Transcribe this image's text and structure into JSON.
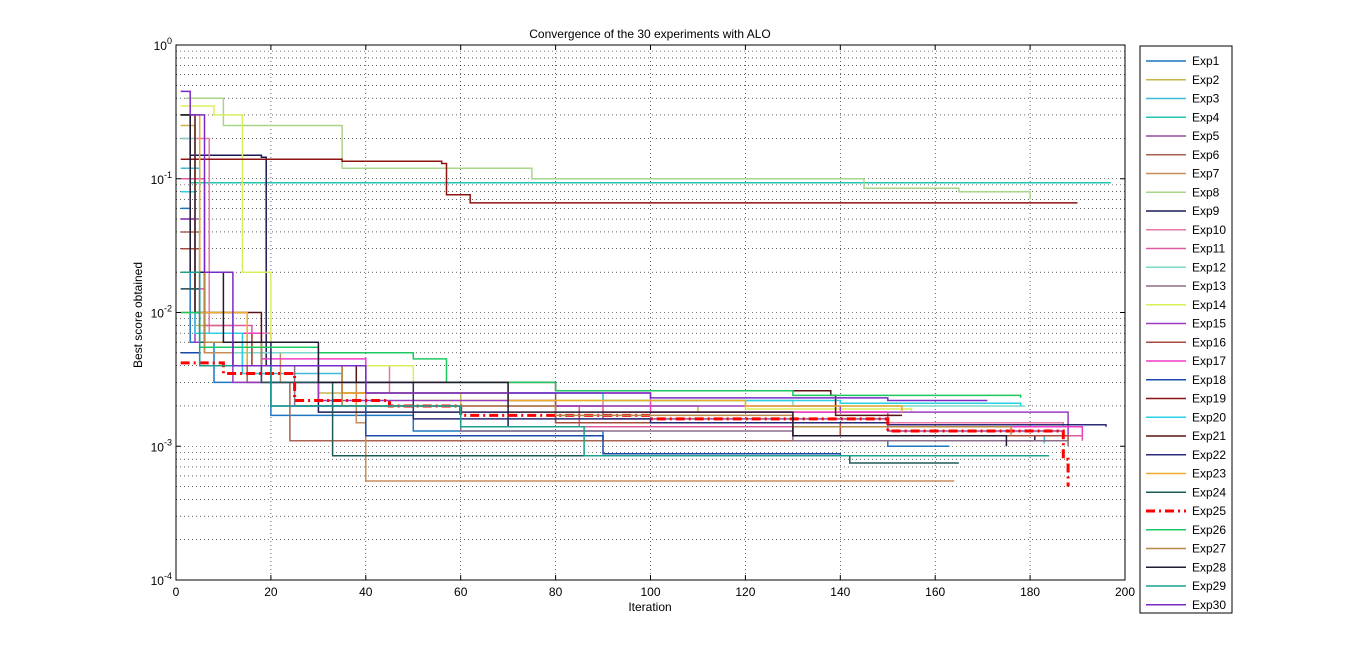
{
  "chart_data": {
    "type": "line",
    "title": "Convergence of the 30 experiments with ALO",
    "xlabel": "Iteration",
    "ylabel": "Best score obtained",
    "xlim": [
      0,
      200
    ],
    "ylim": [
      0.0001,
      1
    ],
    "yscale": "log",
    "grid": true,
    "legend_position": "outside-right",
    "x_ticks": [
      "0",
      "20",
      "40",
      "60",
      "80",
      "100",
      "120",
      "140",
      "160",
      "180",
      "200"
    ],
    "y_ticks": [
      {
        "base": "10",
        "exp": "-4"
      },
      {
        "base": "10",
        "exp": "-3"
      },
      {
        "base": "10",
        "exp": "-2"
      },
      {
        "base": "10",
        "exp": "-1"
      },
      {
        "base": "10",
        "exp": "0"
      }
    ],
    "series": [
      {
        "name": "Exp1",
        "color": "#1f77c4",
        "points": [
          [
            1,
            0.06
          ],
          [
            3,
            0.006
          ],
          [
            8,
            0.003
          ],
          [
            20,
            0.0017
          ],
          [
            50,
            0.0013
          ],
          [
            90,
            0.0011
          ],
          [
            150,
            0.001
          ],
          [
            163,
            0.001
          ]
        ]
      },
      {
        "name": "Exp2",
        "color": "#c8b44a",
        "points": [
          [
            1,
            0.25
          ],
          [
            4,
            0.008
          ],
          [
            12,
            0.004
          ],
          [
            30,
            0.0025
          ],
          [
            60,
            0.002
          ],
          [
            110,
            0.0018
          ],
          [
            150,
            0.0017
          ],
          [
            152,
            0.0017
          ]
        ]
      },
      {
        "name": "Exp3",
        "color": "#3cbad8",
        "points": [
          [
            1,
            0.12
          ],
          [
            5,
            0.006
          ],
          [
            14,
            0.0035
          ],
          [
            35,
            0.002
          ],
          [
            80,
            0.0015
          ],
          [
            140,
            0.0012
          ],
          [
            183,
            0.00105
          ]
        ]
      },
      {
        "name": "Exp4",
        "color": "#22c6b0",
        "points": [
          [
            1,
            0.3
          ],
          [
            3,
            0.0933
          ],
          [
            50,
            0.0933
          ],
          [
            120,
            0.0933
          ],
          [
            197,
            0.0933
          ]
        ]
      },
      {
        "name": "Exp5",
        "color": "#9a4c9c",
        "points": [
          [
            1,
            0.02
          ],
          [
            6,
            0.005
          ],
          [
            18,
            0.003
          ],
          [
            40,
            0.002
          ],
          [
            90,
            0.0016
          ],
          [
            150,
            0.0013
          ],
          [
            187,
            0.0012
          ]
        ]
      },
      {
        "name": "Exp6",
        "color": "#a8624e",
        "points": [
          [
            1,
            0.04
          ],
          [
            5,
            0.007
          ],
          [
            15,
            0.003
          ],
          [
            24,
            0.0011
          ],
          [
            60,
            0.0011
          ],
          [
            120,
            0.0011
          ],
          [
            175,
            0.0011
          ]
        ]
      },
      {
        "name": "Exp7",
        "color": "#c88b5a",
        "points": [
          [
            1,
            0.01
          ],
          [
            6,
            0.005
          ],
          [
            22,
            0.003
          ],
          [
            38,
            0.0015
          ],
          [
            40,
            0.00055
          ],
          [
            100,
            0.00055
          ],
          [
            164,
            0.00055
          ]
        ]
      },
      {
        "name": "Exp8",
        "color": "#a9d58b",
        "points": [
          [
            2,
            0.4
          ],
          [
            10,
            0.25
          ],
          [
            35,
            0.12
          ],
          [
            75,
            0.1
          ],
          [
            105,
            0.1
          ],
          [
            145,
            0.085
          ],
          [
            165,
            0.08
          ],
          [
            180,
            0.07
          ]
        ]
      },
      {
        "name": "Exp9",
        "color": "#1a1a55",
        "points": [
          [
            1,
            0.3
          ],
          [
            3,
            0.15
          ],
          [
            18,
            0.145
          ],
          [
            19,
            0.004
          ],
          [
            30,
            0.0018
          ],
          [
            70,
            0.0014
          ],
          [
            130,
            0.0012
          ],
          [
            181,
            0.0011
          ]
        ]
      },
      {
        "name": "Exp10",
        "color": "#e87aa8",
        "points": [
          [
            1,
            0.2
          ],
          [
            7,
            0.007
          ],
          [
            20,
            0.004
          ],
          [
            45,
            0.0025
          ],
          [
            90,
            0.0018
          ],
          [
            150,
            0.0015
          ],
          [
            187,
            0.0014
          ]
        ]
      },
      {
        "name": "Exp11",
        "color": "#dd5aa0",
        "points": [
          [
            1,
            0.1
          ],
          [
            6,
            0.008
          ],
          [
            16,
            0.004
          ],
          [
            40,
            0.002
          ],
          [
            85,
            0.0014
          ],
          [
            140,
            0.0012
          ],
          [
            191,
            0.0011
          ]
        ]
      },
      {
        "name": "Exp12",
        "color": "#7cd8c8",
        "points": [
          [
            1,
            0.2
          ],
          [
            4,
            0.01
          ],
          [
            12,
            0.005
          ],
          [
            30,
            0.003
          ],
          [
            70,
            0.0022
          ],
          [
            130,
            0.002
          ],
          [
            179,
            0.002
          ]
        ]
      },
      {
        "name": "Exp13",
        "color": "#8c6e8a",
        "points": [
          [
            1,
            0.05
          ],
          [
            5,
            0.006
          ],
          [
            12,
            0.004
          ],
          [
            25,
            0.002
          ],
          [
            60,
            0.0013
          ],
          [
            130,
            0.0011
          ],
          [
            188,
            0.001
          ]
        ]
      },
      {
        "name": "Exp14",
        "color": "#d8ef5c",
        "points": [
          [
            1,
            0.35
          ],
          [
            8,
            0.3
          ],
          [
            14,
            0.02
          ],
          [
            20,
            0.004
          ],
          [
            50,
            0.0022
          ],
          [
            120,
            0.0019
          ],
          [
            155,
            0.0018
          ]
        ]
      },
      {
        "name": "Exp15",
        "color": "#9a3ac0",
        "points": [
          [
            1,
            0.05
          ],
          [
            4,
            0.006
          ],
          [
            12,
            0.003
          ],
          [
            30,
            0.0022
          ],
          [
            80,
            0.002
          ],
          [
            140,
            0.0018
          ],
          [
            188,
            0.0012
          ]
        ]
      },
      {
        "name": "Exp16",
        "color": "#a64c3c",
        "points": [
          [
            1,
            0.03
          ],
          [
            5,
            0.007
          ],
          [
            16,
            0.004
          ],
          [
            35,
            0.0025
          ],
          [
            80,
            0.0015
          ],
          [
            140,
            0.0012
          ],
          [
            188,
            0.0011
          ]
        ]
      },
      {
        "name": "Exp17",
        "color": "#f23cc8",
        "points": [
          [
            1,
            0.015
          ],
          [
            6,
            0.007
          ],
          [
            18,
            0.0045
          ],
          [
            40,
            0.0025
          ],
          [
            100,
            0.0018
          ],
          [
            150,
            0.0014
          ],
          [
            191,
            0.0012
          ]
        ]
      },
      {
        "name": "Exp18",
        "color": "#1a4aa8",
        "points": [
          [
            1,
            0.005
          ],
          [
            5,
            0.004
          ],
          [
            20,
            0.002
          ],
          [
            40,
            0.0012
          ],
          [
            90,
            0.00088
          ],
          [
            140,
            0.00085
          ],
          [
            161,
            0.00085
          ]
        ]
      },
      {
        "name": "Exp19",
        "color": "#8e1414",
        "points": [
          [
            1,
            0.14
          ],
          [
            20,
            0.14
          ],
          [
            35,
            0.135
          ],
          [
            56,
            0.13
          ],
          [
            57,
            0.076
          ],
          [
            62,
            0.066
          ],
          [
            120,
            0.066
          ],
          [
            190,
            0.066
          ]
        ]
      },
      {
        "name": "Exp20",
        "color": "#2ad0e6",
        "points": [
          [
            1,
            0.08
          ],
          [
            4,
            0.007
          ],
          [
            14,
            0.004
          ],
          [
            40,
            0.0025
          ],
          [
            90,
            0.0022
          ],
          [
            140,
            0.0021
          ],
          [
            178,
            0.002
          ]
        ]
      },
      {
        "name": "Exp21",
        "color": "#5a1414",
        "points": [
          [
            1,
            0.3
          ],
          [
            4,
            0.01
          ],
          [
            18,
            0.004
          ],
          [
            38,
            0.003
          ],
          [
            80,
            0.0026
          ],
          [
            138,
            0.0024
          ],
          [
            139,
            0.0017
          ],
          [
            153,
            0.0017
          ]
        ]
      },
      {
        "name": "Exp22",
        "color": "#2a2a78",
        "points": [
          [
            1,
            0.02
          ],
          [
            6,
            0.006
          ],
          [
            20,
            0.003
          ],
          [
            50,
            0.0016
          ],
          [
            100,
            0.0015
          ],
          [
            150,
            0.00145
          ],
          [
            196,
            0.0014
          ]
        ]
      },
      {
        "name": "Exp23",
        "color": "#f0aa2a",
        "points": [
          [
            1,
            0.3
          ],
          [
            5,
            0.01
          ],
          [
            15,
            0.004
          ],
          [
            35,
            0.0025
          ],
          [
            70,
            0.0022
          ],
          [
            120,
            0.002
          ],
          [
            153,
            0.0018
          ]
        ]
      },
      {
        "name": "Exp24",
        "color": "#1e5a58",
        "points": [
          [
            1,
            0.015
          ],
          [
            5,
            0.006
          ],
          [
            18,
            0.003
          ],
          [
            33,
            0.00085
          ],
          [
            80,
            0.00085
          ],
          [
            142,
            0.00075
          ],
          [
            165,
            0.00075
          ]
        ]
      },
      {
        "name": "Exp25",
        "color": "#ff0000",
        "dashed": true,
        "points": [
          [
            1,
            0.0042
          ],
          [
            10,
            0.0035
          ],
          [
            25,
            0.0022
          ],
          [
            45,
            0.002
          ],
          [
            60,
            0.0017
          ],
          [
            100,
            0.0016
          ],
          [
            150,
            0.0013
          ],
          [
            186,
            0.0013
          ],
          [
            187,
            0.0008
          ],
          [
            188,
            0.0005
          ]
        ]
      },
      {
        "name": "Exp26",
        "color": "#1cc860",
        "points": [
          [
            1,
            0.01
          ],
          [
            5,
            0.0055
          ],
          [
            30,
            0.005
          ],
          [
            50,
            0.0045
          ],
          [
            57,
            0.003
          ],
          [
            80,
            0.0026
          ],
          [
            130,
            0.0024
          ],
          [
            178,
            0.0023
          ]
        ]
      },
      {
        "name": "Exp27",
        "color": "#b88a4a",
        "points": [
          [
            1,
            0.02
          ],
          [
            6,
            0.006
          ],
          [
            18,
            0.004
          ],
          [
            35,
            0.002
          ],
          [
            80,
            0.0017
          ],
          [
            130,
            0.0014
          ],
          [
            176,
            0.0012
          ]
        ]
      },
      {
        "name": "Exp28",
        "color": "#221a30",
        "points": [
          [
            1,
            0.3
          ],
          [
            3,
            0.02
          ],
          [
            10,
            0.006
          ],
          [
            30,
            0.003
          ],
          [
            70,
            0.0018
          ],
          [
            130,
            0.0012
          ],
          [
            175,
            0.001
          ]
        ]
      },
      {
        "name": "Exp29",
        "color": "#1aa08c",
        "points": [
          [
            1,
            0.02
          ],
          [
            5,
            0.004
          ],
          [
            20,
            0.002
          ],
          [
            60,
            0.0014
          ],
          [
            86,
            0.00085
          ],
          [
            130,
            0.00085
          ],
          [
            184,
            0.00085
          ]
        ]
      },
      {
        "name": "Exp30",
        "color": "#7a2ac8",
        "points": [
          [
            1,
            0.45
          ],
          [
            3,
            0.3
          ],
          [
            6,
            0.02
          ],
          [
            12,
            0.004
          ],
          [
            40,
            0.0025
          ],
          [
            100,
            0.0023
          ],
          [
            150,
            0.0022
          ],
          [
            171,
            0.0022
          ]
        ]
      }
    ]
  }
}
